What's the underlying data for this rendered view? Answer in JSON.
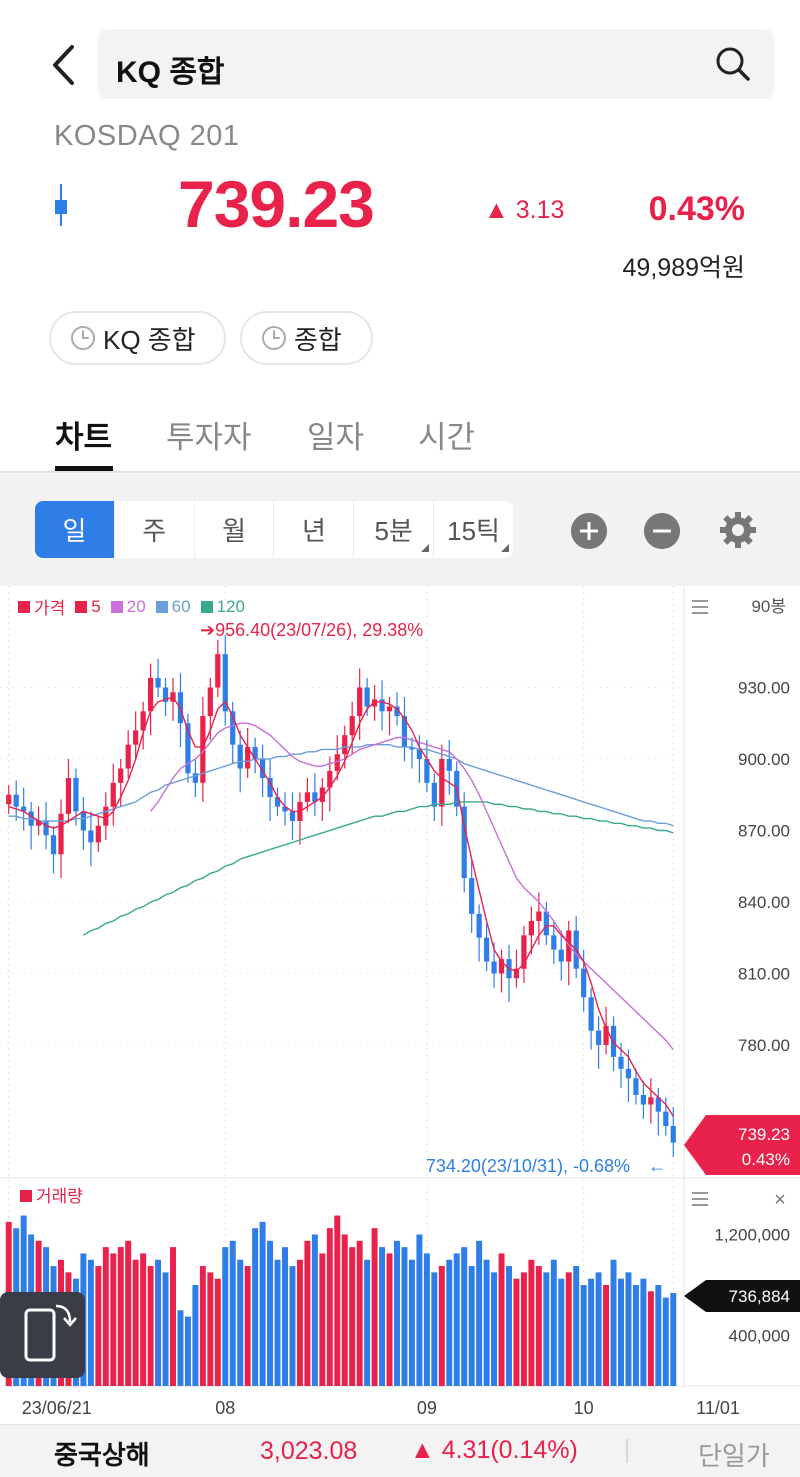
{
  "header": {
    "search_text": "KQ 종합",
    "sub_name": "KOSDAQ 201"
  },
  "quote": {
    "price": "739.23",
    "change": "▲ 3.13",
    "change_pct": "0.43%",
    "trade_amount": "49,989억원",
    "color_up": "#e8224a",
    "color_down": "#2f7ee8"
  },
  "chips": [
    "KQ 종합",
    "종합"
  ],
  "tabs": [
    "차트",
    "투자자",
    "일자",
    "시간"
  ],
  "periods": [
    "일",
    "주",
    "월",
    "년",
    "5분",
    "15틱"
  ],
  "legend": {
    "items": [
      {
        "label": "가격",
        "color": "#e8224a"
      },
      {
        "label": "5",
        "color": "#e8224a"
      },
      {
        "label": "20",
        "color": "#c86fd8"
      },
      {
        "label": "60",
        "color": "#6a9fd8"
      },
      {
        "label": "120",
        "color": "#3aa88f"
      }
    ],
    "volume_label": "거래량"
  },
  "chart_side": {
    "candles_count": "90봉",
    "price_badge_value": "739.23",
    "price_badge_pct": "0.43%",
    "volume_badge": "736,884"
  },
  "annotations": {
    "high": "➔956.40(23/07/26), 29.38%",
    "low": "734.20(23/10/31), -0.68%"
  },
  "chart_data": {
    "type": "candlestick",
    "price_ticks": [
      930.0,
      900.0,
      870.0,
      840.0,
      810.0,
      780.0
    ],
    "price_tick_labels": [
      "930.00",
      "900.00",
      "870.00",
      "840.00",
      "810.00",
      "780.00"
    ],
    "volume_ticks": [
      1200000,
      400000
    ],
    "volume_tick_labels": [
      "1,200,000",
      "400,000"
    ],
    "x_labels": [
      "23/06/21",
      "08",
      "09",
      "10",
      "11/01"
    ],
    "price_range": [
      725,
      960
    ],
    "volume_range": [
      0,
      1600000
    ],
    "close": [
      885,
      880,
      878,
      872,
      874,
      868,
      860,
      877,
      892,
      878,
      870,
      865,
      872,
      880,
      890,
      896,
      906,
      912,
      920,
      934,
      930,
      924,
      928,
      915,
      894,
      890,
      918,
      930,
      944,
      920,
      906,
      896,
      905,
      900,
      892,
      884,
      880,
      878,
      874,
      882,
      886,
      882,
      888,
      895,
      902,
      910,
      918,
      930,
      922,
      925,
      920,
      922,
      918,
      905,
      904,
      900,
      890,
      880,
      900,
      895,
      880,
      850,
      835,
      825,
      815,
      810,
      816,
      808,
      812,
      826,
      832,
      836,
      826,
      820,
      815,
      828,
      812,
      800,
      786,
      780,
      788,
      775,
      770,
      766,
      759,
      755,
      758,
      752,
      746,
      739
    ],
    "ma5": [
      880,
      879,
      878,
      876,
      874,
      872,
      871,
      872,
      874,
      876,
      878,
      877,
      876,
      875,
      878,
      884,
      891,
      900,
      911,
      920,
      924,
      925,
      926,
      921,
      912,
      905,
      905,
      912,
      921,
      924,
      918,
      910,
      905,
      900,
      895,
      890,
      884,
      880,
      878,
      878,
      880,
      882,
      884,
      888,
      893,
      899,
      907,
      915,
      921,
      924,
      924,
      923,
      921,
      917,
      912,
      905,
      900,
      895,
      892,
      890,
      888,
      872,
      858,
      845,
      832,
      820,
      815,
      812,
      811,
      814,
      820,
      826,
      830,
      830,
      826,
      823,
      820,
      815,
      806,
      795,
      787,
      781,
      778,
      775,
      769,
      764,
      761,
      758,
      755,
      750
    ],
    "ma20": [
      null,
      null,
      null,
      null,
      null,
      null,
      null,
      null,
      null,
      null,
      null,
      null,
      null,
      null,
      null,
      null,
      null,
      null,
      null,
      878,
      882,
      887,
      892,
      896,
      898,
      900,
      903,
      907,
      911,
      913,
      914,
      915,
      915,
      914,
      912,
      910,
      907,
      904,
      901,
      899,
      898,
      897,
      897,
      898,
      899,
      900,
      902,
      904,
      905,
      906,
      907,
      908,
      909,
      909,
      908,
      907,
      906,
      905,
      904,
      903,
      900,
      896,
      891,
      885,
      878,
      871,
      864,
      857,
      850,
      846,
      843,
      840,
      836,
      832,
      827,
      822,
      818,
      815,
      812,
      809,
      806,
      803,
      800,
      797,
      794,
      791,
      788,
      785,
      782,
      778
    ],
    "ma60": [
      876,
      876,
      875,
      875,
      874,
      874,
      874,
      874,
      874,
      875,
      875,
      876,
      877,
      878,
      879,
      880,
      881,
      882,
      884,
      886,
      887,
      889,
      890,
      891,
      892,
      893,
      894,
      895,
      896,
      897,
      898,
      899,
      899,
      900,
      900,
      900,
      901,
      901,
      902,
      902,
      903,
      903,
      904,
      904,
      904,
      905,
      905,
      905,
      906,
      906,
      906,
      906,
      905,
      905,
      905,
      904,
      904,
      903,
      902,
      901,
      900,
      898,
      897,
      896,
      895,
      894,
      893,
      892,
      891,
      890,
      889,
      888,
      887,
      886,
      885,
      884,
      883,
      882,
      881,
      880,
      879,
      878,
      877,
      876,
      875,
      874,
      874,
      873,
      873,
      872
    ],
    "ma120": [
      null,
      null,
      null,
      null,
      null,
      null,
      null,
      null,
      null,
      null,
      826,
      828,
      829,
      831,
      832,
      834,
      835,
      837,
      838,
      840,
      841,
      843,
      844,
      846,
      847,
      849,
      850,
      852,
      853,
      855,
      856,
      858,
      859,
      860,
      861,
      862,
      863,
      864,
      865,
      866,
      867,
      868,
      869,
      870,
      871,
      872,
      873,
      874,
      875,
      876,
      876,
      877,
      878,
      878,
      879,
      880,
      880,
      881,
      881,
      881,
      882,
      882,
      882,
      882,
      882,
      881,
      881,
      880,
      880,
      879,
      879,
      878,
      878,
      877,
      877,
      876,
      876,
      875,
      875,
      874,
      874,
      873,
      873,
      872,
      872,
      871,
      871,
      870,
      870,
      869
    ],
    "volume": [
      1300000,
      1250000,
      1350000,
      1200000,
      1150000,
      1100000,
      950000,
      1000000,
      900000,
      850000,
      1050000,
      1000000,
      950000,
      1100000,
      1050000,
      1100000,
      1150000,
      1000000,
      1050000,
      950000,
      1000000,
      900000,
      1100000,
      600000,
      550000,
      800000,
      950000,
      900000,
      850000,
      1100000,
      1150000,
      1000000,
      950000,
      1250000,
      1300000,
      1150000,
      1000000,
      1100000,
      950000,
      1000000,
      1150000,
      1200000,
      1050000,
      1250000,
      1350000,
      1200000,
      1100000,
      1150000,
      1000000,
      1250000,
      1100000,
      1050000,
      1150000,
      1100000,
      1000000,
      1200000,
      1050000,
      900000,
      950000,
      1000000,
      1050000,
      1100000,
      950000,
      1150000,
      1000000,
      900000,
      1050000,
      950000,
      850000,
      900000,
      1000000,
      950000,
      900000,
      1000000,
      850000,
      900000,
      950000,
      800000,
      850000,
      900000,
      800000,
      1000000,
      850000,
      900000,
      800000,
      850000,
      750000,
      800000,
      700000,
      736884
    ]
  },
  "bottom_bar": {
    "name": "중국상해",
    "price": "3,023.08",
    "change": "▲ 4.31(0.14%)",
    "right_label": "단일가"
  }
}
